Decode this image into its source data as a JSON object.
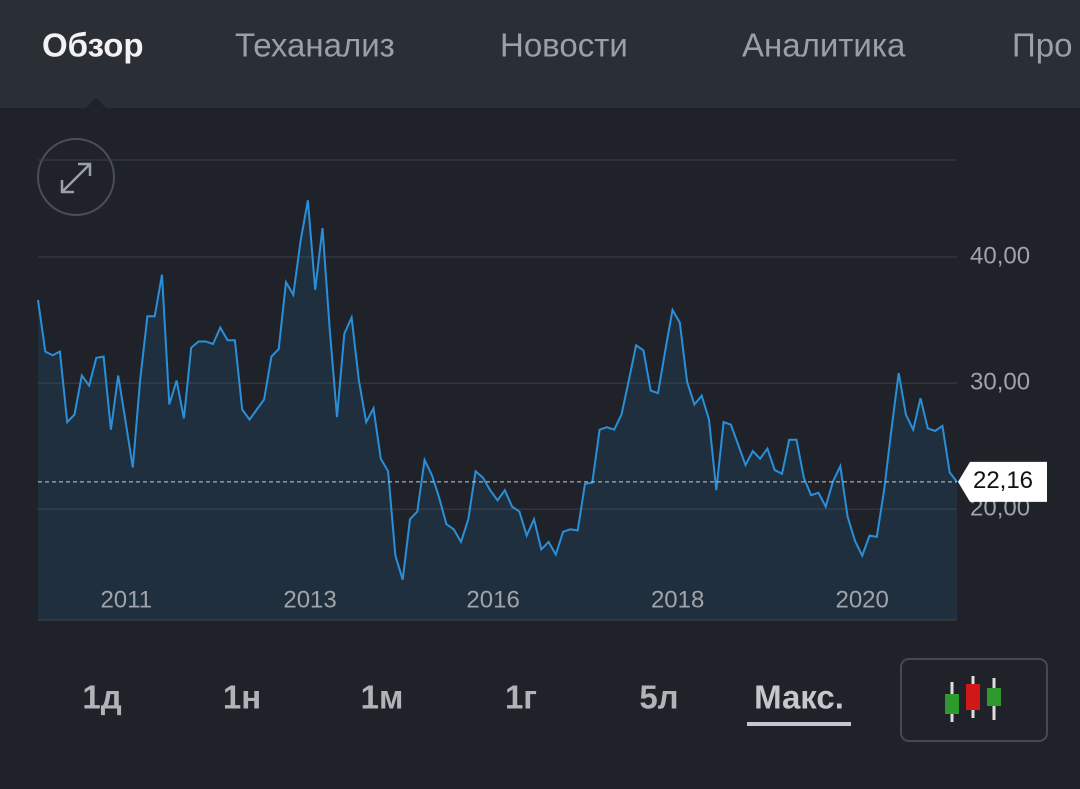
{
  "tabs": [
    "Обзор",
    "Теханализ",
    "Новости",
    "Аналитика",
    "Про"
  ],
  "active_tab": 0,
  "chart_data": {
    "type": "line",
    "color": "#2a8fd8",
    "grid": true,
    "x": [
      0,
      1,
      2,
      3,
      4,
      5,
      6,
      7,
      8,
      9,
      10,
      11,
      12,
      13,
      14,
      15,
      16,
      17,
      18,
      19,
      20,
      21,
      22,
      23,
      24,
      25,
      26,
      27,
      28,
      29,
      30,
      31,
      32,
      33,
      34,
      35,
      36,
      37,
      38,
      39,
      40,
      41,
      42,
      43,
      44,
      45,
      46,
      47,
      48,
      49,
      50,
      51,
      52,
      53,
      54,
      55,
      56,
      57,
      58,
      59,
      60,
      61,
      62,
      63,
      64,
      65,
      66,
      67,
      68,
      69,
      70,
      71,
      72,
      73,
      74,
      75,
      76,
      77,
      78,
      79,
      80,
      81,
      82,
      83,
      84,
      85,
      86,
      87,
      88,
      89,
      90,
      91,
      92,
      93,
      94,
      95,
      96,
      97,
      98,
      99,
      100,
      101,
      102,
      103,
      104,
      105,
      106,
      107,
      108,
      109,
      110,
      111,
      112,
      113,
      114,
      115,
      116,
      117,
      118,
      119,
      120,
      121,
      122,
      123,
      124,
      125,
      126
    ],
    "values": [
      36.6,
      32.5,
      32.2,
      32.5,
      26.9,
      27.5,
      30.6,
      29.8,
      32.0,
      32.1,
      26.3,
      30.6,
      27.0,
      23.3,
      30.2,
      35.3,
      35.3,
      38.6,
      28.3,
      30.2,
      27.2,
      32.8,
      33.3,
      33.3,
      33.1,
      34.4,
      33.4,
      33.4,
      27.9,
      27.1,
      27.9,
      28.7,
      32.1,
      32.7,
      38.0,
      37.0,
      41.3,
      44.5,
      37.4,
      42.3,
      34.3,
      27.3,
      33.9,
      35.2,
      30.2,
      26.9,
      28.0,
      24.0,
      23.0,
      16.3,
      14.4,
      19.2,
      19.8,
      23.9,
      22.7,
      20.9,
      18.8,
      18.4,
      17.4,
      19.2,
      23.0,
      22.5,
      21.5,
      20.7,
      21.5,
      20.2,
      19.8,
      17.9,
      19.2,
      16.8,
      17.4,
      16.4,
      18.2,
      18.4,
      18.3,
      22.0,
      22.1,
      26.3,
      26.5,
      26.3,
      27.5,
      30.2,
      33.0,
      32.6,
      29.4,
      29.2,
      32.6,
      35.8,
      34.8,
      30.1,
      28.3,
      29.0,
      27.1,
      21.5,
      26.9,
      26.7,
      25.1,
      23.5,
      24.6,
      24.0,
      24.8,
      23.1,
      22.8,
      25.5,
      25.5,
      22.5,
      21.1,
      21.3,
      20.2,
      22.2,
      23.4,
      19.4,
      17.5,
      16.3,
      17.9,
      17.8,
      21.5,
      26.3,
      30.8,
      27.5,
      26.3,
      28.8,
      26.4,
      26.2,
      26.6,
      22.9,
      22.16
    ],
    "xlim": [
      0,
      126
    ],
    "ylim": [
      11.2,
      47.7
    ],
    "xticks": [
      {
        "value": 12.1,
        "label": "2011"
      },
      {
        "value": 37.3,
        "label": "2013"
      },
      {
        "value": 62.4,
        "label": "2016"
      },
      {
        "value": 87.7,
        "label": "2018"
      },
      {
        "value": 113,
        "label": "2020"
      }
    ],
    "yticks": [
      {
        "value": 20,
        "label": "20,00"
      },
      {
        "value": 30,
        "label": "30,00"
      },
      {
        "value": 40,
        "label": "40,00"
      }
    ],
    "current": {
      "value": 22.16,
      "label": "22,16"
    }
  },
  "periods": [
    "1д",
    "1н",
    "1м",
    "1г",
    "5л",
    "Макс."
  ],
  "active_period": 5
}
